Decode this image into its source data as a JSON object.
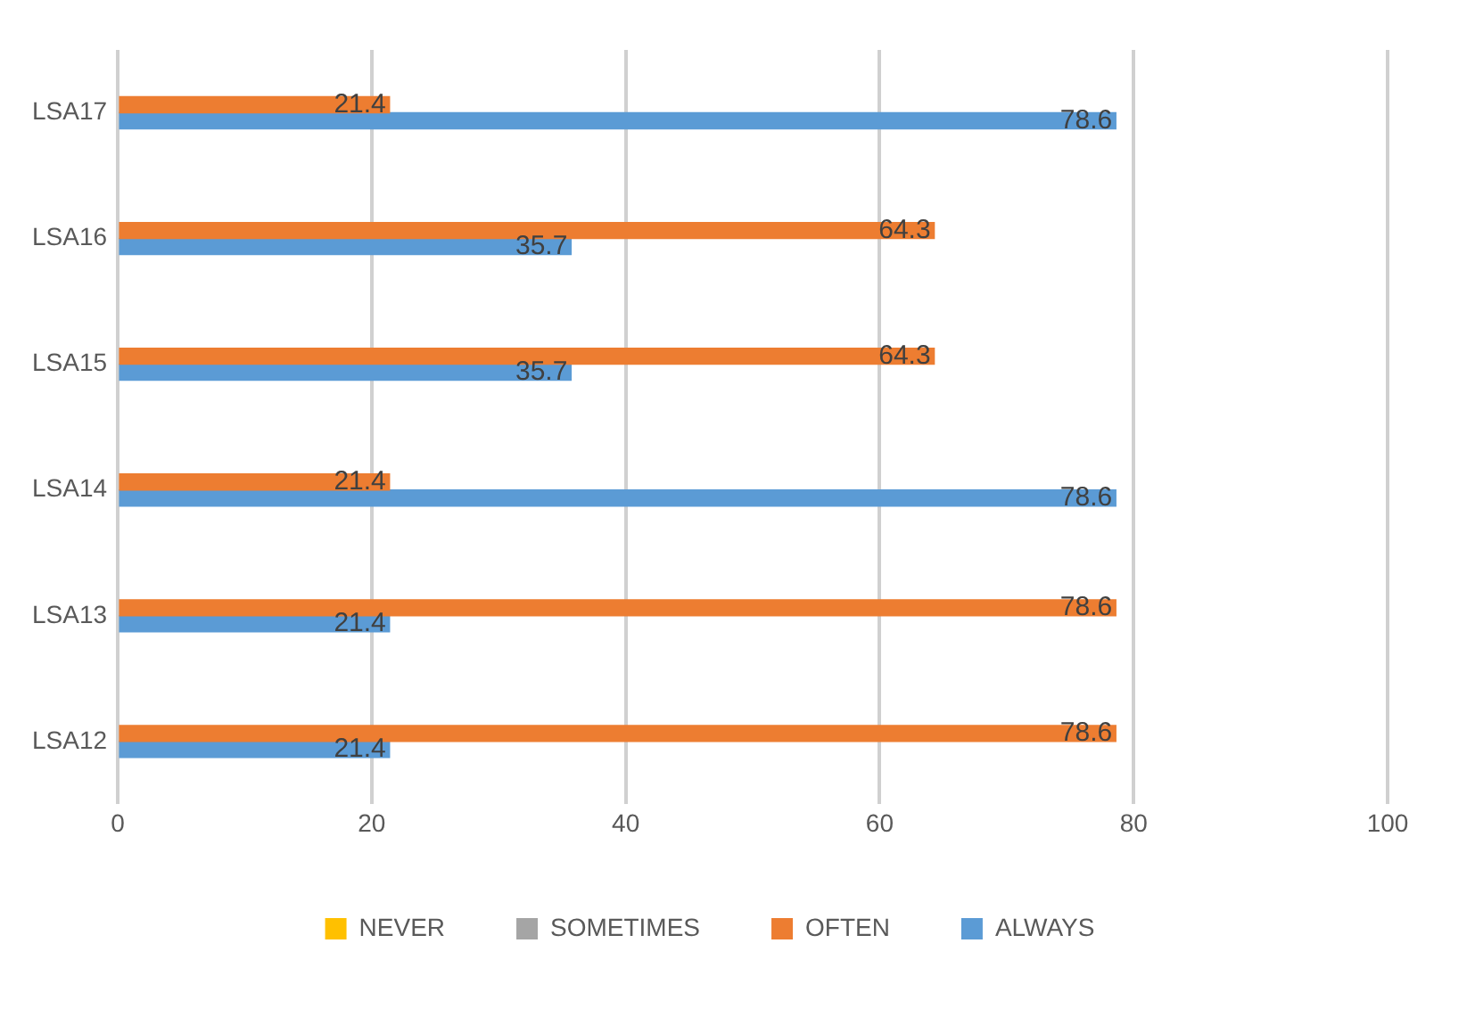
{
  "chart_data": {
    "type": "bar",
    "orientation": "horizontal",
    "categories": [
      "LSA17",
      "LSA16",
      "LSA15",
      "LSA14",
      "LSA13",
      "LSA12"
    ],
    "series": [
      {
        "name": "NEVER",
        "color": "#ffc000",
        "values": [
          null,
          null,
          null,
          null,
          null,
          null
        ]
      },
      {
        "name": "SOMETIMES",
        "color": "#a5a5a5",
        "values": [
          null,
          null,
          null,
          null,
          null,
          null
        ]
      },
      {
        "name": "OFTEN",
        "color": "#ed7d31",
        "values": [
          21.4,
          64.3,
          64.3,
          21.4,
          78.6,
          78.6
        ]
      },
      {
        "name": "ALWAYS",
        "color": "#5b9bd5",
        "values": [
          78.6,
          35.7,
          35.7,
          78.6,
          21.4,
          21.4
        ]
      }
    ],
    "xlim": [
      0,
      100
    ],
    "xticks": [
      0,
      20,
      40,
      60,
      80,
      100
    ],
    "grid": "x",
    "legend": "bottom",
    "data_labels": true
  }
}
